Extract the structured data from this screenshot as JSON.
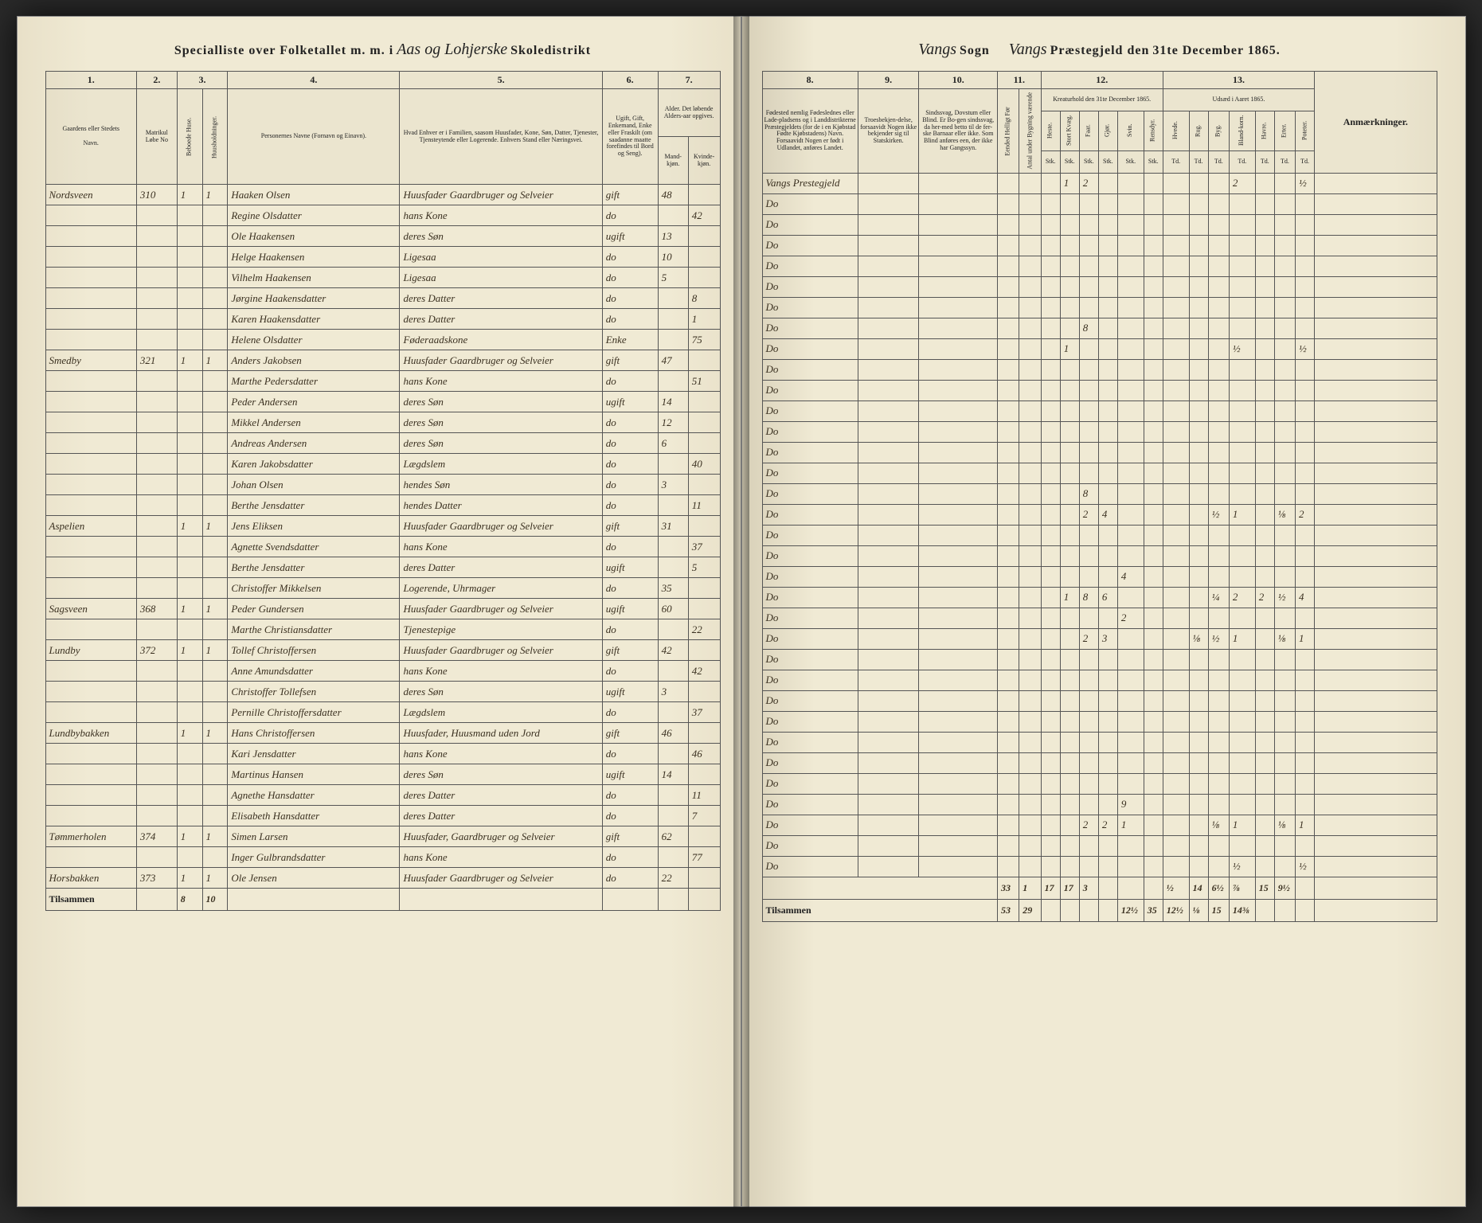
{
  "header": {
    "left_prefix": "Specialliste over Folketallet m. m. i",
    "left_script": "Aas og Lohjerske",
    "left_suffix": "Skoledistrikt",
    "right_script1": "Vangs",
    "right_mid1": "Sogn",
    "right_script2": "Vangs",
    "right_mid2": "Præstegjeld den",
    "right_date": "31te December 1865."
  },
  "left_cols": {
    "c1": "1.",
    "c2": "2.",
    "c3": "3.",
    "c4": "4.",
    "c5": "5.",
    "c6": "6.",
    "c7": "7.",
    "h1": "Gaardens eller Stedets",
    "h1b": "Navn.",
    "h2": "Matrikul Løbe No",
    "h3a": "Beboede Huse.",
    "h3b": "Huusholdninger.",
    "h4": "Personernes Navne (Fornavn og Einavn).",
    "h5": "Hvad Enhver er i Familien, saasom Huusfader, Kone, Søn, Datter, Tjenester, Tjensteytende eller Logerende. Enhvers Stand eller Næringsvei.",
    "h6": "Ugift, Gift, Enkemand, Enke eller Fraskilt (om saadanne maatte forefindes til Bord og Seng).",
    "h7": "Alder. Det løbende Alders-aar opgives.",
    "h7a": "Mand-kjøn.",
    "h7b": "Kvinde-kjøn."
  },
  "right_cols": {
    "c8": "8.",
    "c9": "9.",
    "c10": "10.",
    "c11": "11.",
    "c12": "12.",
    "c13": "13.",
    "h8": "Fødested nemlig Fødeslednes eller Lade-pladsens og i Landdistrikterne Præstegjeldets (for de i en Kjøbstad Fødte Kjøbstadens) Navn. Forsaavidt Nogen er født i Udlandet, anføres Landet.",
    "h9": "Troesbekjen-delse, forsaavidt Nogen ikke bekjender sig til Statskirken.",
    "h10": "Sindssvag, Dovstum eller Blind. Er Bo-gen sindssvag, da her-med betto til de fer-ske Barnaar eller ikke. Som Blind anføres een, der ikke har Gangssyn.",
    "h11a": "Eended Helligt Før",
    "h11b": "Antal under Bygning værende",
    "h12": "Kreaturhold den 31te December 1865.",
    "h12a": "Heste.",
    "h12b": "Stort Kvæg.",
    "h12c": "Faar.",
    "h12d": "Gjør.",
    "h12e": "Svin.",
    "h12f": "Rensdyr.",
    "h13": "Udsæd i Aaret 1865.",
    "h13a": "Hvede.",
    "h13b": "Rug.",
    "h13c": "Byg.",
    "h13d": "Bland-korn.",
    "h13e": "Havre.",
    "h13f": "Erter.",
    "h13g": "Poteter.",
    "h14": "Anmærkninger.",
    "unit": "Stk.",
    "unit2": "Td."
  },
  "rows": [
    {
      "farm": "Nordsveen",
      "matr": "310",
      "house": "1",
      "hh": "1",
      "name": "Haaken Olsen",
      "status": "Huusfader Gaardbruger og Selveier",
      "civil": "gift",
      "ageM": "48",
      "ageF": "",
      "birth": "Vangs Prestegjeld",
      "ls": [
        "",
        "1",
        "2",
        "",
        "",
        ""
      ],
      "crop": [
        "",
        "",
        "",
        "2",
        "",
        "",
        "½"
      ]
    },
    {
      "farm": "",
      "matr": "",
      "house": "",
      "hh": "",
      "name": "Regine Olsdatter",
      "status": "hans Kone",
      "civil": "do",
      "ageM": "",
      "ageF": "42",
      "birth": "Do",
      "ls": [
        "",
        "",
        "",
        "",
        "",
        ""
      ],
      "crop": [
        "",
        "",
        "",
        "",
        "",
        "",
        ""
      ]
    },
    {
      "farm": "",
      "matr": "",
      "house": "",
      "hh": "",
      "name": "Ole Haakensen",
      "status": "deres Søn",
      "civil": "ugift",
      "ageM": "13",
      "ageF": "",
      "birth": "Do",
      "ls": [
        "",
        "",
        "",
        "",
        "",
        ""
      ],
      "crop": [
        "",
        "",
        "",
        "",
        "",
        "",
        ""
      ]
    },
    {
      "farm": "",
      "matr": "",
      "house": "",
      "hh": "",
      "name": "Helge Haakensen",
      "status": "Ligesaa",
      "civil": "do",
      "ageM": "10",
      "ageF": "",
      "birth": "Do",
      "ls": [
        "",
        "",
        "",
        "",
        "",
        ""
      ],
      "crop": [
        "",
        "",
        "",
        "",
        "",
        "",
        ""
      ]
    },
    {
      "farm": "",
      "matr": "",
      "house": "",
      "hh": "",
      "name": "Vilhelm Haakensen",
      "status": "Ligesaa",
      "civil": "do",
      "ageM": "5",
      "ageF": "",
      "birth": "Do",
      "ls": [
        "",
        "",
        "",
        "",
        "",
        ""
      ],
      "crop": [
        "",
        "",
        "",
        "",
        "",
        "",
        ""
      ]
    },
    {
      "farm": "",
      "matr": "",
      "house": "",
      "hh": "",
      "name": "Jørgine Haakensdatter",
      "status": "deres Datter",
      "civil": "do",
      "ageM": "",
      "ageF": "8",
      "birth": "Do",
      "ls": [
        "",
        "",
        "",
        "",
        "",
        ""
      ],
      "crop": [
        "",
        "",
        "",
        "",
        "",
        "",
        ""
      ]
    },
    {
      "farm": "",
      "matr": "",
      "house": "",
      "hh": "",
      "name": "Karen Haakensdatter",
      "status": "deres Datter",
      "civil": "do",
      "ageM": "",
      "ageF": "1",
      "birth": "Do",
      "ls": [
        "",
        "",
        "",
        "",
        "",
        ""
      ],
      "crop": [
        "",
        "",
        "",
        "",
        "",
        "",
        ""
      ]
    },
    {
      "farm": "",
      "matr": "",
      "house": "",
      "hh": "",
      "name": "Helene Olsdatter",
      "status": "Føderaadskone",
      "civil": "Enke",
      "ageM": "",
      "ageF": "75",
      "birth": "Do",
      "ls": [
        "",
        "",
        "8",
        "",
        "",
        ""
      ],
      "crop": [
        "",
        "",
        "",
        "",
        "",
        "",
        ""
      ]
    },
    {
      "farm": "Smedby",
      "matr": "321",
      "house": "1",
      "hh": "1",
      "name": "Anders Jakobsen",
      "status": "Huusfader Gaardbruger og Selveier",
      "civil": "gift",
      "ageM": "47",
      "ageF": "",
      "birth": "Do",
      "ls": [
        "",
        "1",
        "",
        "",
        "",
        ""
      ],
      "crop": [
        "",
        "",
        "",
        "½",
        "",
        "",
        "½"
      ]
    },
    {
      "farm": "",
      "matr": "",
      "house": "",
      "hh": "",
      "name": "Marthe Pedersdatter",
      "status": "hans Kone",
      "civil": "do",
      "ageM": "",
      "ageF": "51",
      "birth": "Do",
      "ls": [
        "",
        "",
        "",
        "",
        "",
        ""
      ],
      "crop": [
        "",
        "",
        "",
        "",
        "",
        "",
        ""
      ]
    },
    {
      "farm": "",
      "matr": "",
      "house": "",
      "hh": "",
      "name": "Peder Andersen",
      "status": "deres Søn",
      "civil": "ugift",
      "ageM": "14",
      "ageF": "",
      "birth": "Do",
      "ls": [
        "",
        "",
        "",
        "",
        "",
        ""
      ],
      "crop": [
        "",
        "",
        "",
        "",
        "",
        "",
        ""
      ]
    },
    {
      "farm": "",
      "matr": "",
      "house": "",
      "hh": "",
      "name": "Mikkel Andersen",
      "status": "deres Søn",
      "civil": "do",
      "ageM": "12",
      "ageF": "",
      "birth": "Do",
      "ls": [
        "",
        "",
        "",
        "",
        "",
        ""
      ],
      "crop": [
        "",
        "",
        "",
        "",
        "",
        "",
        ""
      ]
    },
    {
      "farm": "",
      "matr": "",
      "house": "",
      "hh": "",
      "name": "Andreas Andersen",
      "status": "deres Søn",
      "civil": "do",
      "ageM": "6",
      "ageF": "",
      "birth": "Do",
      "ls": [
        "",
        "",
        "",
        "",
        "",
        ""
      ],
      "crop": [
        "",
        "",
        "",
        "",
        "",
        "",
        ""
      ]
    },
    {
      "farm": "",
      "matr": "",
      "house": "",
      "hh": "",
      "name": "Karen Jakobsdatter",
      "status": "Lægdslem",
      "civil": "do",
      "ageM": "",
      "ageF": "40",
      "birth": "Do",
      "ls": [
        "",
        "",
        "",
        "",
        "",
        ""
      ],
      "crop": [
        "",
        "",
        "",
        "",
        "",
        "",
        ""
      ]
    },
    {
      "farm": "",
      "matr": "",
      "house": "",
      "hh": "",
      "name": "Johan Olsen",
      "status": "hendes Søn",
      "civil": "do",
      "ageM": "3",
      "ageF": "",
      "birth": "Do",
      "ls": [
        "",
        "",
        "",
        "",
        "",
        ""
      ],
      "crop": [
        "",
        "",
        "",
        "",
        "",
        "",
        ""
      ]
    },
    {
      "farm": "",
      "matr": "",
      "house": "",
      "hh": "",
      "name": "Berthe Jensdatter",
      "status": "hendes Datter",
      "civil": "do",
      "ageM": "",
      "ageF": "11",
      "birth": "Do",
      "ls": [
        "",
        "",
        "8",
        "",
        "",
        ""
      ],
      "crop": [
        "",
        "",
        "",
        "",
        "",
        "",
        ""
      ]
    },
    {
      "farm": "Aspelien",
      "matr": "",
      "house": "1",
      "hh": "1",
      "name": "Jens Eliksen",
      "status": "Huusfader Gaardbruger og Selveier",
      "civil": "gift",
      "ageM": "31",
      "ageF": "",
      "birth": "Do",
      "ls": [
        "",
        "",
        "2",
        "4",
        "",
        ""
      ],
      "crop": [
        "",
        "",
        "½",
        "1",
        "",
        "⅛",
        "2"
      ]
    },
    {
      "farm": "",
      "matr": "",
      "house": "",
      "hh": "",
      "name": "Agnette Svendsdatter",
      "status": "hans Kone",
      "civil": "do",
      "ageM": "",
      "ageF": "37",
      "birth": "Do",
      "ls": [
        "",
        "",
        "",
        "",
        "",
        ""
      ],
      "crop": [
        "",
        "",
        "",
        "",
        "",
        "",
        ""
      ]
    },
    {
      "farm": "",
      "matr": "",
      "house": "",
      "hh": "",
      "name": "Berthe Jensdatter",
      "status": "deres Datter",
      "civil": "ugift",
      "ageM": "",
      "ageF": "5",
      "birth": "Do",
      "ls": [
        "",
        "",
        "",
        "",
        "",
        ""
      ],
      "crop": [
        "",
        "",
        "",
        "",
        "",
        "",
        ""
      ]
    },
    {
      "farm": "",
      "matr": "",
      "house": "",
      "hh": "",
      "name": "Christoffer Mikkelsen",
      "status": "Logerende, Uhrmager",
      "civil": "do",
      "ageM": "35",
      "ageF": "",
      "birth": "Do",
      "ls": [
        "",
        "",
        "",
        "",
        "4",
        ""
      ],
      "crop": [
        "",
        "",
        "",
        "",
        "",
        "",
        ""
      ]
    },
    {
      "farm": "Sagsveen",
      "matr": "368",
      "house": "1",
      "hh": "1",
      "name": "Peder Gundersen",
      "status": "Huusfader Gaardbruger og Selveier",
      "civil": "ugift",
      "ageM": "60",
      "ageF": "",
      "birth": "Do",
      "ls": [
        "",
        "1",
        "8",
        "6",
        "",
        ""
      ],
      "crop": [
        "",
        "",
        "¼",
        "2",
        "2",
        "½",
        "4"
      ]
    },
    {
      "farm": "",
      "matr": "",
      "house": "",
      "hh": "",
      "name": "Marthe Christiansdatter",
      "status": "Tjenestepige",
      "civil": "do",
      "ageM": "",
      "ageF": "22",
      "birth": "Do",
      "ls": [
        "",
        "",
        "",
        "",
        "2",
        ""
      ],
      "crop": [
        "",
        "",
        "",
        "",
        "",
        "",
        ""
      ]
    },
    {
      "farm": "Lundby",
      "matr": "372",
      "house": "1",
      "hh": "1",
      "name": "Tollef Christoffersen",
      "status": "Huusfader Gaardbruger og Selveier",
      "civil": "gift",
      "ageM": "42",
      "ageF": "",
      "birth": "Do",
      "ls": [
        "",
        "",
        "2",
        "3",
        "",
        ""
      ],
      "crop": [
        "",
        "⅛",
        "½",
        "1",
        "",
        "⅛",
        "1"
      ]
    },
    {
      "farm": "",
      "matr": "",
      "house": "",
      "hh": "",
      "name": "Anne Amundsdatter",
      "status": "hans Kone",
      "civil": "do",
      "ageM": "",
      "ageF": "42",
      "birth": "Do",
      "ls": [
        "",
        "",
        "",
        "",
        "",
        ""
      ],
      "crop": [
        "",
        "",
        "",
        "",
        "",
        "",
        ""
      ]
    },
    {
      "farm": "",
      "matr": "",
      "house": "",
      "hh": "",
      "name": "Christoffer Tollefsen",
      "status": "deres Søn",
      "civil": "ugift",
      "ageM": "3",
      "ageF": "",
      "birth": "Do",
      "ls": [
        "",
        "",
        "",
        "",
        "",
        ""
      ],
      "crop": [
        "",
        "",
        "",
        "",
        "",
        "",
        ""
      ]
    },
    {
      "farm": "",
      "matr": "",
      "house": "",
      "hh": "",
      "name": "Pernille Christoffersdatter",
      "status": "Lægdslem",
      "civil": "do",
      "ageM": "",
      "ageF": "37",
      "birth": "Do",
      "ls": [
        "",
        "",
        "",
        "",
        "",
        ""
      ],
      "crop": [
        "",
        "",
        "",
        "",
        "",
        "",
        ""
      ]
    },
    {
      "farm": "Lundbybakken",
      "matr": "",
      "house": "1",
      "hh": "1",
      "name": "Hans Christoffersen",
      "status": "Huusfader, Huusmand uden Jord",
      "civil": "gift",
      "ageM": "46",
      "ageF": "",
      "birth": "Do",
      "ls": [
        "",
        "",
        "",
        "",
        "",
        ""
      ],
      "crop": [
        "",
        "",
        "",
        "",
        "",
        "",
        ""
      ]
    },
    {
      "farm": "",
      "matr": "",
      "house": "",
      "hh": "",
      "name": "Kari Jensdatter",
      "status": "hans Kone",
      "civil": "do",
      "ageM": "",
      "ageF": "46",
      "birth": "Do",
      "ls": [
        "",
        "",
        "",
        "",
        "",
        ""
      ],
      "crop": [
        "",
        "",
        "",
        "",
        "",
        "",
        ""
      ]
    },
    {
      "farm": "",
      "matr": "",
      "house": "",
      "hh": "",
      "name": "Martinus Hansen",
      "status": "deres Søn",
      "civil": "ugift",
      "ageM": "14",
      "ageF": "",
      "birth": "Do",
      "ls": [
        "",
        "",
        "",
        "",
        "",
        ""
      ],
      "crop": [
        "",
        "",
        "",
        "",
        "",
        "",
        ""
      ]
    },
    {
      "farm": "",
      "matr": "",
      "house": "",
      "hh": "",
      "name": "Agnethe Hansdatter",
      "status": "deres Datter",
      "civil": "do",
      "ageM": "",
      "ageF": "11",
      "birth": "Do",
      "ls": [
        "",
        "",
        "",
        "",
        "",
        ""
      ],
      "crop": [
        "",
        "",
        "",
        "",
        "",
        "",
        ""
      ]
    },
    {
      "farm": "",
      "matr": "",
      "house": "",
      "hh": "",
      "name": "Elisabeth Hansdatter",
      "status": "deres Datter",
      "civil": "do",
      "ageM": "",
      "ageF": "7",
      "birth": "Do",
      "ls": [
        "",
        "",
        "",
        "",
        "9",
        ""
      ],
      "crop": [
        "",
        "",
        "",
        "",
        "",
        "",
        ""
      ]
    },
    {
      "farm": "Tømmerholen",
      "matr": "374",
      "house": "1",
      "hh": "1",
      "name": "Simen Larsen",
      "status": "Huusfader, Gaardbruger og Selveier",
      "civil": "gift",
      "ageM": "62",
      "ageF": "",
      "birth": "Do",
      "ls": [
        "",
        "",
        "2",
        "2",
        "1",
        ""
      ],
      "crop": [
        "",
        "",
        "⅛",
        "1",
        "",
        "⅛",
        "1"
      ]
    },
    {
      "farm": "",
      "matr": "",
      "house": "",
      "hh": "",
      "name": "Inger Gulbrandsdatter",
      "status": "hans Kone",
      "civil": "do",
      "ageM": "",
      "ageF": "77",
      "birth": "Do",
      "ls": [
        "",
        "",
        "",
        "",
        "",
        ""
      ],
      "crop": [
        "",
        "",
        "",
        "",
        "",
        "",
        ""
      ]
    },
    {
      "farm": "Horsbakken",
      "matr": "373",
      "house": "1",
      "hh": "1",
      "name": "Ole Jensen",
      "status": "Huusfader Gaardbruger og Selveier",
      "civil": "do",
      "ageM": "22",
      "ageF": "",
      "birth": "Do",
      "ls": [
        "",
        "",
        "",
        "",
        "",
        ""
      ],
      "crop": [
        "",
        "",
        "",
        "½",
        "",
        "",
        "½"
      ]
    }
  ],
  "footer": {
    "label": "Tilsammen",
    "left_h": "8",
    "left_hh": "10",
    "right_totals1": [
      "33",
      "1",
      "17",
      "17",
      "3",
      "",
      "",
      "",
      "½",
      "14",
      "6½",
      "⅞",
      "15",
      "9½"
    ],
    "right_totals2": [
      "",
      "",
      "",
      "",
      "",
      "",
      "",
      "",
      "",
      "",
      "",
      "",
      "",
      ""
    ],
    "right_grand": [
      "53",
      "29",
      "",
      "",
      "",
      "",
      "12½",
      "35",
      "12½",
      "⅛",
      "15",
      "14⅜"
    ]
  }
}
